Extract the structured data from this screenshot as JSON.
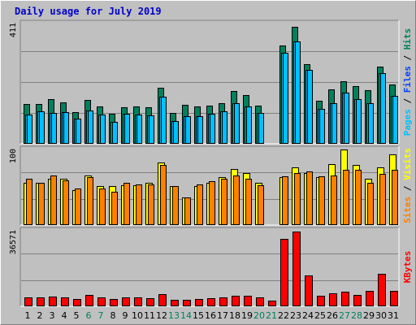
{
  "title": "Daily usage for July 2019",
  "colors": {
    "hits": "#00805c",
    "files": "#00c0ff",
    "pages": "#00c0ff",
    "visits": "#ffff00",
    "sites": "#ff8000",
    "kbytes": "#ff0000",
    "label_files": "#0040ff",
    "weekend_day": "#00805c"
  },
  "side_labels": {
    "top": [
      {
        "text": "Pages",
        "color": "#00c0ff"
      },
      {
        "text": " / ",
        "color": "#000000"
      },
      {
        "text": "Files",
        "color": "#0040ff"
      },
      {
        "text": " / ",
        "color": "#000000"
      },
      {
        "text": "Hits",
        "color": "#00805c"
      }
    ],
    "middle": [
      {
        "text": "Sites",
        "color": "#ff8000"
      },
      {
        "text": " / ",
        "color": "#000000"
      },
      {
        "text": "Visits",
        "color": "#ffff00"
      }
    ],
    "bottom": [
      {
        "text": "KBytes",
        "color": "#ff0000"
      }
    ]
  },
  "chart_data": {
    "type": "bar",
    "title": "Daily usage for July 2019",
    "categories": [
      "1",
      "2",
      "3",
      "4",
      "5",
      "6",
      "7",
      "8",
      "9",
      "10",
      "11",
      "12",
      "13",
      "14",
      "15",
      "16",
      "17",
      "18",
      "19",
      "20",
      "21",
      "22",
      "23",
      "24",
      "25",
      "26",
      "27",
      "28",
      "29",
      "30",
      "31"
    ],
    "weekend_days": [
      "6",
      "7",
      "13",
      "14",
      "20",
      "21",
      "27",
      "28"
    ],
    "panels": [
      {
        "name": "Pages / Files / Hits",
        "ymax_label": "411",
        "ylim": [
          0,
          411
        ],
        "series": [
          {
            "name": "Hits",
            "values": [
              133,
              133,
              150,
              138,
              105,
              146,
              126,
              100,
              122,
              124,
              122,
              188,
              102,
              130,
              124,
              128,
              137,
              179,
              164,
              129,
              0,
              334,
              397,
              270,
              144,
              183,
              211,
              195,
              180,
              262,
              201
            ]
          },
          {
            "name": "Files",
            "values": [
              96,
              107,
              102,
              106,
              82,
              111,
              97,
              72,
              100,
              96,
              94,
              157,
              76,
              93,
              93,
              99,
              109,
              135,
              125,
              103,
              0,
              308,
              348,
              251,
              116,
              137,
              171,
              149,
              137,
              239,
              160
            ]
          },
          {
            "name": "Pages",
            "values": [
              96,
              107,
              102,
              106,
              82,
              111,
              97,
              72,
              100,
              96,
              94,
              157,
              76,
              93,
              93,
              99,
              109,
              135,
              125,
              103,
              0,
              308,
              348,
              251,
              116,
              137,
              171,
              149,
              137,
              239,
              160
            ]
          }
        ]
      },
      {
        "name": "Sites / Visits",
        "ymax_label": "100",
        "ylim": [
          0,
          100
        ],
        "series": [
          {
            "name": "Visits",
            "values": [
              55,
              55,
              60,
              60,
              45,
              65,
              50,
              50,
              52,
              52,
              55,
              82,
              50,
              35,
              50,
              55,
              62,
              73,
              68,
              55,
              0,
              62,
              75,
              68,
              62,
              80,
              99,
              78,
              60,
              75,
              92
            ]
          },
          {
            "name": "Sites",
            "values": [
              60,
              55,
              65,
              58,
              47,
              62,
              47,
              43,
              55,
              53,
              53,
              78,
              50,
              35,
              53,
              57,
              60,
              65,
              60,
              52,
              0,
              63,
              68,
              70,
              63,
              64,
              72,
              72,
              55,
              67,
              72
            ]
          }
        ]
      },
      {
        "name": "KBytes",
        "ymax_label": "36571",
        "ylim": [
          0,
          36571
        ],
        "series": [
          {
            "name": "KBytes",
            "values": [
              3800,
              4000,
              4500,
              3800,
              3000,
              5200,
              4000,
              3000,
              3800,
              3800,
              3700,
              5600,
              2800,
              2800,
              3200,
              3500,
              3800,
              4800,
              4700,
              3800,
              2400,
              32200,
              35800,
              14500,
              4600,
              6000,
              6500,
              5200,
              7200,
              15400,
              7000
            ]
          }
        ]
      }
    ]
  }
}
